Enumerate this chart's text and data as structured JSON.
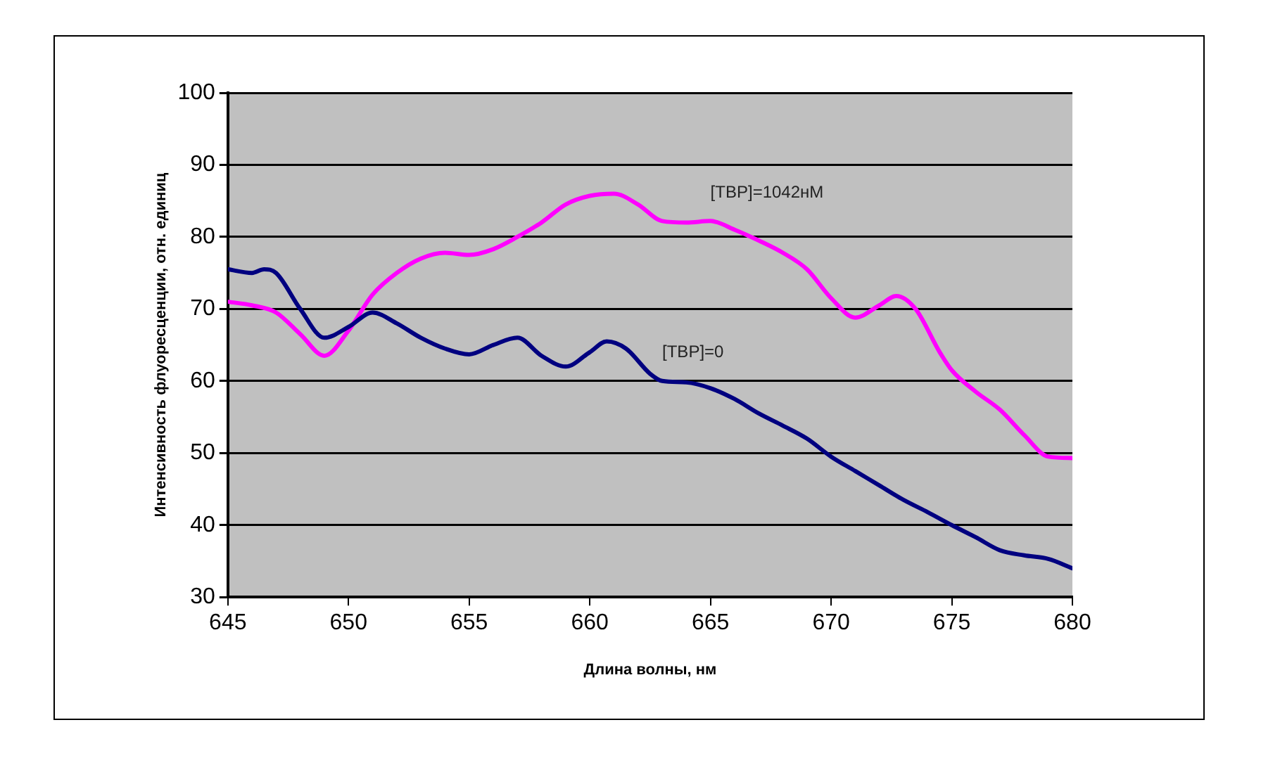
{
  "chart_data": {
    "type": "line",
    "xlabel": "Длина волны, нм",
    "ylabel": "Интенсивность флуоресценции, отн. единиц",
    "xlim": [
      645,
      680
    ],
    "xticks": [
      645,
      650,
      655,
      660,
      665,
      670,
      675,
      680
    ],
    "ylim": [
      30,
      100
    ],
    "yticks": [
      30,
      40,
      50,
      60,
      70,
      80,
      90,
      100
    ],
    "grid": "y",
    "legend": false,
    "marker": "none",
    "line_style": "solid",
    "series": [
      {
        "name": "[TBP]=0",
        "color": "#000080",
        "x": [
          645,
          646,
          646.5,
          647,
          648,
          649,
          650,
          651,
          652,
          653,
          654,
          655,
          656,
          657,
          658,
          659,
          660,
          660.7,
          661.5,
          662.5,
          663,
          664,
          665,
          666,
          667,
          668,
          669,
          670,
          671,
          672,
          673,
          674,
          675,
          676,
          677,
          678,
          679,
          680
        ],
        "values": [
          75.5,
          75,
          75.5,
          75,
          70,
          66,
          67.5,
          69.5,
          68,
          66,
          64.5,
          63.7,
          65,
          66,
          63.5,
          62,
          64,
          65.5,
          64.5,
          61,
          60,
          59.8,
          59,
          57.5,
          55.5,
          53.8,
          52,
          49.5,
          47.5,
          45.5,
          43.5,
          41.8,
          40,
          38.3,
          36.5,
          35.8,
          35.3,
          34
        ]
      },
      {
        "name": "[TBP]=1042нМ",
        "color": "#ff00ff",
        "x": [
          645,
          646,
          647,
          648,
          649,
          650,
          651,
          652,
          653,
          654,
          655,
          656,
          657,
          658,
          659,
          660,
          661,
          662,
          663,
          664,
          665,
          666,
          667,
          668,
          669,
          670,
          671,
          672,
          672.7,
          673.5,
          674.5,
          675,
          676,
          677,
          678,
          679,
          680
        ],
        "values": [
          71,
          70.5,
          69.5,
          66.5,
          63.5,
          67,
          72,
          75,
          77,
          77.8,
          77.5,
          78.3,
          80,
          82,
          84.5,
          85.7,
          86,
          84.5,
          82.2,
          82,
          82.2,
          81,
          79.5,
          77.8,
          75.5,
          71.5,
          68.8,
          70.5,
          71.8,
          70,
          64,
          61.5,
          58.5,
          56,
          52.5,
          49.5,
          49.3
        ]
      }
    ]
  }
}
